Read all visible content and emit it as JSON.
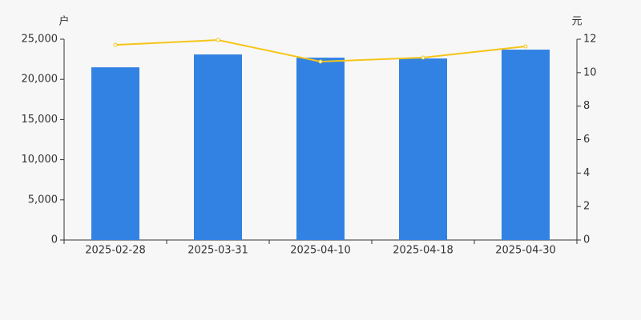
{
  "chart_data": {
    "type": "bar",
    "y_label": "户",
    "y2_label": "元",
    "categories": [
      "2025-02-28",
      "2025-03-31",
      "2025-04-10",
      "2025-04-18",
      "2025-04-30"
    ],
    "series": [
      {
        "type": "bar",
        "color": "#3282e3",
        "values": [
          21500,
          23100,
          22700,
          22600,
          23700
        ]
      },
      {
        "type": "line",
        "axis": "y2",
        "color": "#f5c518",
        "values": [
          11.66,
          11.95,
          10.66,
          10.9,
          11.57
        ]
      }
    ],
    "ylim": [
      0,
      25000
    ],
    "yticks": [
      0,
      {
        "value": 5000,
        "label": "5,000"
      },
      {
        "value": 10000,
        "label": "10,000"
      },
      {
        "value": 15000,
        "label": "15,000"
      },
      {
        "value": 20000,
        "label": "20,000"
      },
      {
        "value": 25000,
        "label": "25,000"
      }
    ],
    "y2lim": [
      0,
      12
    ],
    "y2ticks": [
      0,
      2,
      4,
      6,
      8,
      10,
      12
    ]
  }
}
